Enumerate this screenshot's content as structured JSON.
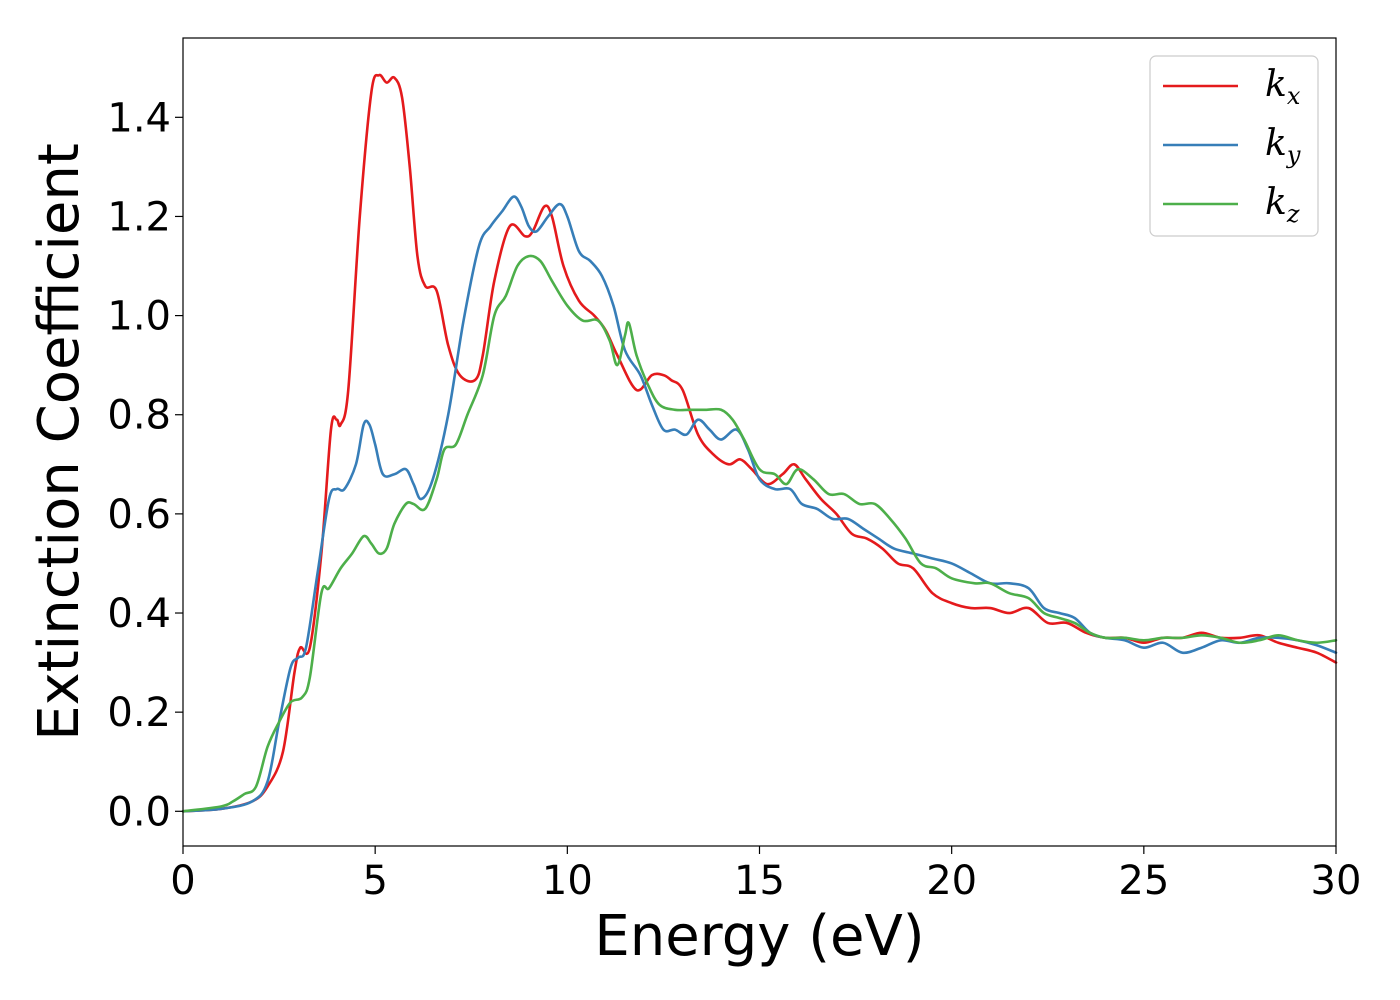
{
  "chart_data": {
    "type": "line",
    "xlabel": "Energy (eV)",
    "ylabel": "Extinction Coefficient",
    "xlim": [
      0,
      30
    ],
    "ylim": [
      -0.07,
      1.56
    ],
    "xticks": [
      0,
      5,
      10,
      15,
      20,
      25,
      30
    ],
    "yticks": [
      0.0,
      0.2,
      0.4,
      0.6,
      0.8,
      1.0,
      1.2,
      1.4
    ],
    "xtick_labels": [
      "0",
      "5",
      "10",
      "15",
      "20",
      "25",
      "30"
    ],
    "ytick_labels": [
      "0.0",
      "0.2",
      "0.4",
      "0.6",
      "0.8",
      "1.0",
      "1.2",
      "1.4"
    ],
    "grid": false,
    "legend_position": "top-right",
    "series": [
      {
        "name": "kx",
        "base": "k",
        "sub": "x",
        "color": "#e41a1c",
        "points": [
          [
            0,
            0.0
          ],
          [
            1,
            0.005
          ],
          [
            1.8,
            0.02
          ],
          [
            2.2,
            0.05
          ],
          [
            2.6,
            0.12
          ],
          [
            2.9,
            0.28
          ],
          [
            3.05,
            0.33
          ],
          [
            3.3,
            0.33
          ],
          [
            3.6,
            0.52
          ],
          [
            3.85,
            0.77
          ],
          [
            4.0,
            0.79
          ],
          [
            4.1,
            0.78
          ],
          [
            4.3,
            0.85
          ],
          [
            4.6,
            1.2
          ],
          [
            4.9,
            1.45
          ],
          [
            5.1,
            1.485
          ],
          [
            5.3,
            1.47
          ],
          [
            5.5,
            1.48
          ],
          [
            5.7,
            1.44
          ],
          [
            5.9,
            1.3
          ],
          [
            6.1,
            1.12
          ],
          [
            6.3,
            1.06
          ],
          [
            6.6,
            1.05
          ],
          [
            6.9,
            0.94
          ],
          [
            7.2,
            0.88
          ],
          [
            7.6,
            0.87
          ],
          [
            7.8,
            0.92
          ],
          [
            8.1,
            1.07
          ],
          [
            8.5,
            1.18
          ],
          [
            8.9,
            1.16
          ],
          [
            9.1,
            1.17
          ],
          [
            9.4,
            1.22
          ],
          [
            9.6,
            1.2
          ],
          [
            9.9,
            1.1
          ],
          [
            10.3,
            1.03
          ],
          [
            10.7,
            1.0
          ],
          [
            11.0,
            0.97
          ],
          [
            11.3,
            0.92
          ],
          [
            11.8,
            0.85
          ],
          [
            12.2,
            0.88
          ],
          [
            12.5,
            0.88
          ],
          [
            12.7,
            0.87
          ],
          [
            13.0,
            0.85
          ],
          [
            13.4,
            0.76
          ],
          [
            13.8,
            0.72
          ],
          [
            14.2,
            0.7
          ],
          [
            14.5,
            0.71
          ],
          [
            14.8,
            0.69
          ],
          [
            15.2,
            0.66
          ],
          [
            15.6,
            0.68
          ],
          [
            15.9,
            0.7
          ],
          [
            16.2,
            0.67
          ],
          [
            16.6,
            0.63
          ],
          [
            17.0,
            0.6
          ],
          [
            17.4,
            0.56
          ],
          [
            17.8,
            0.55
          ],
          [
            18.2,
            0.53
          ],
          [
            18.6,
            0.5
          ],
          [
            19.0,
            0.49
          ],
          [
            19.5,
            0.44
          ],
          [
            20.0,
            0.42
          ],
          [
            20.5,
            0.41
          ],
          [
            21.0,
            0.41
          ],
          [
            21.5,
            0.4
          ],
          [
            22.0,
            0.41
          ],
          [
            22.5,
            0.38
          ],
          [
            23.0,
            0.38
          ],
          [
            23.5,
            0.36
          ],
          [
            24.0,
            0.35
          ],
          [
            24.5,
            0.35
          ],
          [
            25.0,
            0.34
          ],
          [
            25.5,
            0.35
          ],
          [
            26.0,
            0.35
          ],
          [
            26.5,
            0.36
          ],
          [
            27.0,
            0.35
          ],
          [
            27.5,
            0.35
          ],
          [
            28.0,
            0.355
          ],
          [
            28.5,
            0.34
          ],
          [
            29.0,
            0.33
          ],
          [
            29.5,
            0.32
          ],
          [
            30.0,
            0.3
          ]
        ]
      },
      {
        "name": "ky",
        "base": "k",
        "sub": "y",
        "color": "#377eb8",
        "points": [
          [
            0,
            0.0
          ],
          [
            1,
            0.005
          ],
          [
            1.8,
            0.02
          ],
          [
            2.2,
            0.06
          ],
          [
            2.5,
            0.18
          ],
          [
            2.8,
            0.29
          ],
          [
            3.0,
            0.31
          ],
          [
            3.2,
            0.33
          ],
          [
            3.5,
            0.48
          ],
          [
            3.8,
            0.63
          ],
          [
            4.0,
            0.65
          ],
          [
            4.2,
            0.65
          ],
          [
            4.5,
            0.7
          ],
          [
            4.7,
            0.78
          ],
          [
            4.85,
            0.78
          ],
          [
            5.0,
            0.74
          ],
          [
            5.2,
            0.68
          ],
          [
            5.5,
            0.68
          ],
          [
            5.8,
            0.69
          ],
          [
            6.0,
            0.66
          ],
          [
            6.2,
            0.63
          ],
          [
            6.5,
            0.67
          ],
          [
            6.9,
            0.8
          ],
          [
            7.3,
            0.99
          ],
          [
            7.7,
            1.14
          ],
          [
            8.0,
            1.18
          ],
          [
            8.3,
            1.21
          ],
          [
            8.6,
            1.24
          ],
          [
            8.8,
            1.22
          ],
          [
            9.0,
            1.18
          ],
          [
            9.2,
            1.17
          ],
          [
            9.5,
            1.2
          ],
          [
            9.8,
            1.225
          ],
          [
            10.0,
            1.2
          ],
          [
            10.3,
            1.13
          ],
          [
            10.6,
            1.11
          ],
          [
            10.9,
            1.08
          ],
          [
            11.2,
            1.02
          ],
          [
            11.5,
            0.93
          ],
          [
            11.9,
            0.88
          ],
          [
            12.2,
            0.82
          ],
          [
            12.5,
            0.77
          ],
          [
            12.8,
            0.77
          ],
          [
            13.1,
            0.76
          ],
          [
            13.4,
            0.79
          ],
          [
            13.7,
            0.77
          ],
          [
            14.0,
            0.75
          ],
          [
            14.4,
            0.77
          ],
          [
            14.7,
            0.73
          ],
          [
            15.0,
            0.67
          ],
          [
            15.4,
            0.65
          ],
          [
            15.8,
            0.65
          ],
          [
            16.1,
            0.62
          ],
          [
            16.5,
            0.61
          ],
          [
            16.9,
            0.59
          ],
          [
            17.3,
            0.59
          ],
          [
            17.7,
            0.57
          ],
          [
            18.1,
            0.55
          ],
          [
            18.5,
            0.53
          ],
          [
            19.0,
            0.52
          ],
          [
            19.5,
            0.51
          ],
          [
            20.0,
            0.5
          ],
          [
            20.5,
            0.48
          ],
          [
            21.0,
            0.46
          ],
          [
            21.5,
            0.46
          ],
          [
            22.0,
            0.45
          ],
          [
            22.4,
            0.41
          ],
          [
            22.8,
            0.4
          ],
          [
            23.2,
            0.39
          ],
          [
            23.6,
            0.36
          ],
          [
            24.0,
            0.35
          ],
          [
            24.5,
            0.345
          ],
          [
            25.0,
            0.33
          ],
          [
            25.5,
            0.34
          ],
          [
            26.0,
            0.32
          ],
          [
            26.5,
            0.33
          ],
          [
            27.0,
            0.345
          ],
          [
            27.5,
            0.34
          ],
          [
            28.0,
            0.35
          ],
          [
            28.5,
            0.35
          ],
          [
            29.0,
            0.345
          ],
          [
            29.5,
            0.335
          ],
          [
            30.0,
            0.32
          ]
        ]
      },
      {
        "name": "kz",
        "base": "k",
        "sub": "z",
        "color": "#4daf4a",
        "points": [
          [
            0,
            0.0
          ],
          [
            1,
            0.01
          ],
          [
            1.3,
            0.02
          ],
          [
            1.6,
            0.035
          ],
          [
            1.9,
            0.05
          ],
          [
            2.2,
            0.13
          ],
          [
            2.5,
            0.18
          ],
          [
            2.8,
            0.22
          ],
          [
            3.1,
            0.23
          ],
          [
            3.3,
            0.27
          ],
          [
            3.6,
            0.44
          ],
          [
            3.8,
            0.45
          ],
          [
            4.1,
            0.49
          ],
          [
            4.4,
            0.52
          ],
          [
            4.7,
            0.555
          ],
          [
            4.9,
            0.54
          ],
          [
            5.1,
            0.52
          ],
          [
            5.3,
            0.53
          ],
          [
            5.5,
            0.58
          ],
          [
            5.8,
            0.62
          ],
          [
            6.0,
            0.62
          ],
          [
            6.3,
            0.61
          ],
          [
            6.6,
            0.67
          ],
          [
            6.8,
            0.73
          ],
          [
            7.1,
            0.74
          ],
          [
            7.4,
            0.8
          ],
          [
            7.8,
            0.88
          ],
          [
            8.1,
            1.0
          ],
          [
            8.4,
            1.04
          ],
          [
            8.7,
            1.1
          ],
          [
            9.0,
            1.12
          ],
          [
            9.3,
            1.11
          ],
          [
            9.6,
            1.07
          ],
          [
            10.0,
            1.02
          ],
          [
            10.4,
            0.99
          ],
          [
            10.8,
            0.99
          ],
          [
            11.1,
            0.95
          ],
          [
            11.3,
            0.9
          ],
          [
            11.5,
            0.96
          ],
          [
            11.6,
            0.985
          ],
          [
            11.8,
            0.92
          ],
          [
            12.1,
            0.86
          ],
          [
            12.4,
            0.82
          ],
          [
            12.8,
            0.81
          ],
          [
            13.2,
            0.81
          ],
          [
            13.6,
            0.81
          ],
          [
            14.0,
            0.81
          ],
          [
            14.3,
            0.79
          ],
          [
            14.6,
            0.75
          ],
          [
            15.0,
            0.69
          ],
          [
            15.4,
            0.68
          ],
          [
            15.7,
            0.66
          ],
          [
            16.0,
            0.69
          ],
          [
            16.4,
            0.67
          ],
          [
            16.8,
            0.64
          ],
          [
            17.2,
            0.64
          ],
          [
            17.6,
            0.62
          ],
          [
            18.0,
            0.62
          ],
          [
            18.4,
            0.59
          ],
          [
            18.8,
            0.55
          ],
          [
            19.2,
            0.5
          ],
          [
            19.6,
            0.49
          ],
          [
            20.0,
            0.47
          ],
          [
            20.6,
            0.46
          ],
          [
            21.0,
            0.46
          ],
          [
            21.5,
            0.44
          ],
          [
            22.0,
            0.43
          ],
          [
            22.4,
            0.4
          ],
          [
            22.8,
            0.39
          ],
          [
            23.2,
            0.38
          ],
          [
            23.6,
            0.36
          ],
          [
            24.0,
            0.35
          ],
          [
            24.5,
            0.35
          ],
          [
            25.0,
            0.345
          ],
          [
            25.5,
            0.35
          ],
          [
            26.0,
            0.35
          ],
          [
            26.5,
            0.355
          ],
          [
            27.0,
            0.35
          ],
          [
            27.5,
            0.34
          ],
          [
            28.0,
            0.345
          ],
          [
            28.5,
            0.355
          ],
          [
            29.0,
            0.345
          ],
          [
            29.5,
            0.34
          ],
          [
            30.0,
            0.345
          ]
        ]
      }
    ]
  }
}
